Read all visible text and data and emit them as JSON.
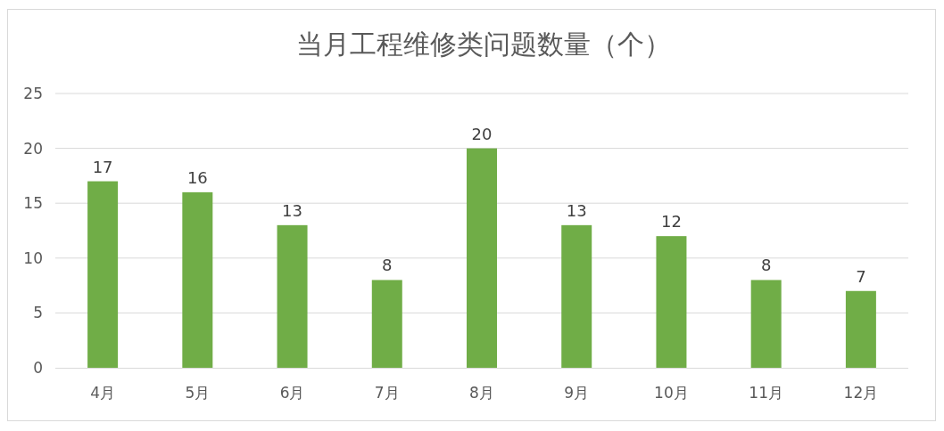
{
  "chart_data": {
    "type": "bar",
    "title": "当月工程维修类问题数量（个）",
    "categories": [
      "4月",
      "5月",
      "6月",
      "7月",
      "8月",
      "9月",
      "10月",
      "11月",
      "12月"
    ],
    "values": [
      17,
      16,
      13,
      8,
      20,
      13,
      12,
      8,
      7
    ],
    "color": "#70ad47",
    "ylim": [
      0,
      25
    ],
    "yticks": [
      0,
      5,
      10,
      15,
      20,
      25
    ],
    "grid": "y",
    "data_labels": true
  }
}
